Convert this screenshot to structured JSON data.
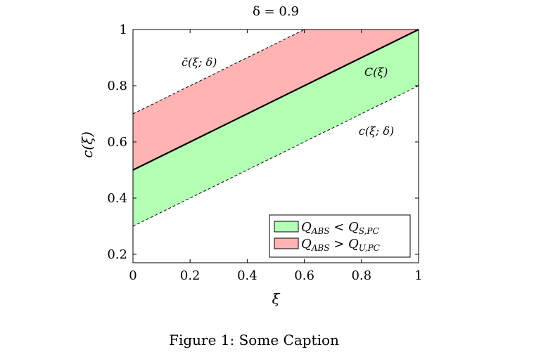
{
  "figure": {
    "caption": "Figure 1: Some Caption"
  },
  "chart_data": {
    "type": "area",
    "title": "δ = 0.9",
    "xlabel": "ξ",
    "ylabel": "c(ξ)",
    "xlim": [
      0,
      1
    ],
    "ylim": [
      0.17,
      1
    ],
    "xticks": [
      0,
      0.2,
      0.4,
      0.6,
      0.8,
      1
    ],
    "xtick_labels": [
      "0",
      "0.2",
      "0.4",
      "0.6",
      "0.8",
      "1"
    ],
    "yticks": [
      0.2,
      0.4,
      0.6,
      0.8,
      1
    ],
    "ytick_labels": [
      "0.2",
      "0.4",
      "0.6",
      "0.8",
      "1"
    ],
    "grid": false,
    "legend_position": "bottom-right",
    "series": [
      {
        "name": "C(ξ)",
        "style": "solid",
        "color": "#000000",
        "x": [
          0,
          1
        ],
        "y": [
          0.5,
          1.0
        ]
      },
      {
        "name": "c̄(ξ; δ)",
        "style": "dashed",
        "color": "#000000",
        "x": [
          0,
          0.6,
          1
        ],
        "y": [
          0.7,
          1.0,
          1.0
        ]
      },
      {
        "name": "c(ξ; δ)",
        "style": "dashed",
        "color": "#000000",
        "x": [
          0,
          1
        ],
        "y": [
          0.3,
          0.8
        ]
      }
    ],
    "bands": [
      {
        "name": "Q_ABS < Q_S,PC",
        "legend_main": "Q",
        "legend_sub": "ABS",
        "legend_op": " < Q",
        "legend_sub2": "S,PC",
        "color": "#b3ffb3",
        "between": [
          "c(ξ; δ)",
          "C(ξ)"
        ]
      },
      {
        "name": "Q_ABS > Q_U,PC",
        "legend_main": "Q",
        "legend_sub": "ABS",
        "legend_op": " > Q",
        "legend_sub2": "U,PC",
        "color": "#ffb3b3",
        "between": [
          "C(ξ)",
          "c̄(ξ; δ)"
        ]
      }
    ],
    "annotations": [
      {
        "text": "c̄(ξ; δ)",
        "x": 0.17,
        "y": 0.87
      },
      {
        "text": "C(ξ)",
        "x": 0.81,
        "y": 0.835
      },
      {
        "text": "c(ξ; δ)",
        "x": 0.79,
        "y": 0.625
      }
    ]
  }
}
